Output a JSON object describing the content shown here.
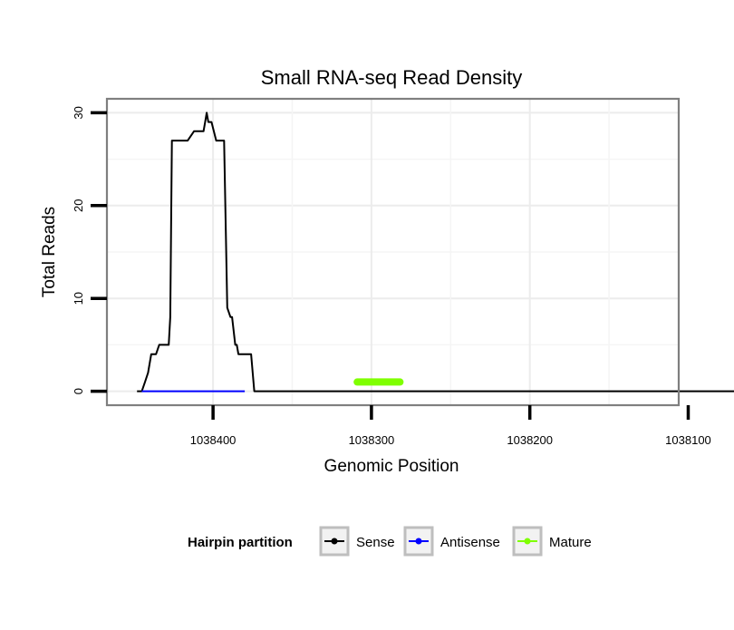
{
  "chart_data": {
    "type": "line",
    "title": "Small RNA-seq Read Density",
    "xlabel": "Genomic Position",
    "ylabel": "Total Reads",
    "x_reversed": true,
    "xlim": [
      1038106,
      1038467
    ],
    "ylim": [
      -1.5,
      31.5
    ],
    "x_ticks": [
      1038400,
      1038300,
      1038200,
      1038100
    ],
    "x_tick_labels": [
      "1038400",
      "1038300",
      "1038200",
      "1038100"
    ],
    "y_ticks": [
      0,
      10,
      20,
      30
    ],
    "y_tick_labels": [
      "0",
      "10",
      "20",
      "30"
    ],
    "grid": true,
    "legend": {
      "title": "Hairpin partition",
      "position": "bottom",
      "entries": [
        {
          "label": "Sense",
          "color": "#000000"
        },
        {
          "label": "Antisense",
          "color": "#0000ff"
        },
        {
          "label": "Mature",
          "color": "#7fff00"
        }
      ]
    },
    "series": [
      {
        "name": "Sense",
        "color": "#000000",
        "x": [
          1038448,
          1038445,
          1038443,
          1038441,
          1038439,
          1038437,
          1038436,
          1038434,
          1038431,
          1038428,
          1038427,
          1038426,
          1038424,
          1038421,
          1038419,
          1038416,
          1038412,
          1038411,
          1038409,
          1038407,
          1038406,
          1038405,
          1038404,
          1038403,
          1038401,
          1038398,
          1038395,
          1038394,
          1038393,
          1038391,
          1038389,
          1038388,
          1038386,
          1038385,
          1038384,
          1038383,
          1038381,
          1038379,
          1038376,
          1038374,
          1038372,
          1038371,
          1038369,
          1038368,
          1038367,
          1038366,
          1038364,
          1038362,
          1038360,
          1038356,
          1038355,
          1038353,
          1038351,
          1038350,
          1038349,
          1038348,
          1038347,
          1038346,
          1038344,
          1038341,
          1038339,
          1038336,
          1038332,
          1038330,
          1038328,
          1038326,
          1038323,
          1038320,
          1038318,
          1038315,
          1038312,
          1038310,
          1038309,
          1038308,
          1038307,
          1038306,
          1038305,
          1038303,
          1038300,
          1038250,
          1038200,
          1038150,
          1038100,
          1038098,
          1038096,
          1038094,
          1038092,
          1038090,
          1038088,
          1038086,
          1038084,
          1038082,
          1038080,
          1038078,
          1038076,
          1038074,
          1038072,
          1038070,
          1038068,
          1038066
        ],
        "y": [
          0,
          0,
          1,
          2,
          4,
          4,
          4,
          5,
          5,
          5,
          8,
          27,
          27,
          27,
          27,
          27,
          28,
          28,
          28,
          28,
          28,
          29,
          30,
          29,
          29,
          27,
          27,
          27,
          27,
          9,
          8,
          8,
          5,
          5,
          4,
          4,
          4,
          4,
          4,
          0,
          0,
          0,
          0,
          0,
          0,
          0,
          0,
          0,
          0,
          0,
          0,
          0,
          0,
          0,
          0,
          0,
          0,
          0,
          0,
          0,
          0,
          0,
          0,
          0,
          0,
          0,
          0,
          0,
          0,
          0,
          0,
          0,
          0,
          0,
          0,
          0,
          0,
          0,
          0,
          0,
          0,
          0,
          0,
          0,
          0,
          0,
          0,
          0,
          0,
          0,
          0,
          0,
          0,
          0,
          0,
          0,
          0,
          0,
          0,
          0
        ]
      },
      {
        "name": "Antisense",
        "color": "#0000ff",
        "x": [
          1038445,
          1038380
        ],
        "y": [
          0,
          0
        ]
      },
      {
        "name": "Mature",
        "color": "#7fff00",
        "x": [
          1038309,
          1038282
        ],
        "y": [
          1,
          1
        ]
      }
    ]
  }
}
